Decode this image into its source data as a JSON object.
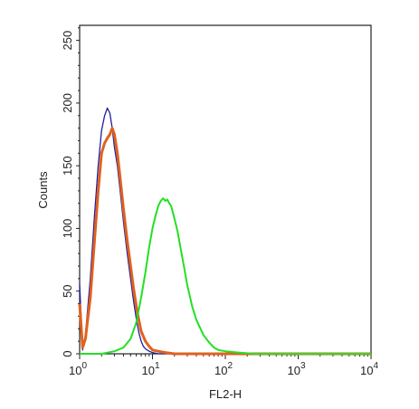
{
  "chart_data": {
    "type": "line",
    "title": "",
    "xlabel": "FL2-H",
    "ylabel": "Counts",
    "x_scale": "log",
    "xlim": [
      1,
      10000
    ],
    "ylim": [
      0,
      262
    ],
    "x_ticks": [
      {
        "value": 1,
        "base": "10",
        "exp": "0"
      },
      {
        "value": 10,
        "base": "10",
        "exp": "1"
      },
      {
        "value": 100,
        "base": "10",
        "exp": "2"
      },
      {
        "value": 1000,
        "base": "10",
        "exp": "3"
      },
      {
        "value": 10000,
        "base": "10",
        "exp": "4"
      }
    ],
    "y_ticks": [
      0,
      50,
      100,
      150,
      200,
      250
    ],
    "grid": false,
    "legend": "none",
    "series": [
      {
        "color": "#1f1f9e",
        "x": [
          1.0,
          1.1,
          1.2,
          1.4,
          1.6,
          1.8,
          2.0,
          2.2,
          2.4,
          2.6,
          2.8,
          3.0,
          3.3,
          3.6,
          4.0,
          4.5,
          5.0,
          5.5,
          6.0,
          6.5,
          7.0,
          7.5,
          8.0,
          9.0,
          10.0,
          12.0,
          15.0,
          20.0,
          30.0,
          10000
        ],
        "y": [
          55,
          3,
          15,
          60,
          110,
          150,
          178,
          190,
          196,
          192,
          180,
          165,
          150,
          130,
          105,
          80,
          60,
          42,
          28,
          17,
          10,
          6,
          4,
          2,
          1,
          0,
          0,
          0,
          0,
          0
        ]
      },
      {
        "color": "#e0611f",
        "x": [
          1.0,
          1.1,
          1.2,
          1.4,
          1.6,
          1.8,
          2.0,
          2.2,
          2.4,
          2.6,
          2.8,
          3.0,
          3.3,
          3.6,
          4.0,
          4.5,
          5.0,
          5.5,
          6.0,
          6.5,
          7.0,
          8.0,
          9.0,
          10.0,
          12.0,
          15.0,
          20.0,
          30.0,
          10000
        ],
        "y": [
          40,
          5,
          12,
          45,
          90,
          130,
          160,
          168,
          172,
          175,
          180,
          175,
          160,
          140,
          115,
          90,
          70,
          52,
          38,
          27,
          18,
          10,
          6,
          3,
          2,
          1,
          0,
          0,
          0
        ]
      },
      {
        "color": "#22e022",
        "x": [
          1.0,
          2.0,
          3.0,
          4.0,
          5.0,
          6.0,
          7.0,
          8.0,
          9.0,
          10.0,
          11.0,
          12.0,
          13.0,
          14.0,
          15.0,
          16.0,
          17.0,
          18.0,
          19.0,
          20.0,
          22.0,
          24.0,
          27.0,
          30.0,
          35.0,
          40.0,
          50.0,
          60.0,
          70.0,
          80.0,
          100.0,
          150.0,
          250.0,
          10000
        ],
        "y": [
          0,
          0,
          2,
          5,
          12,
          25,
          45,
          65,
          85,
          100,
          110,
          118,
          122,
          124,
          122,
          123,
          120,
          118,
          113,
          108,
          98,
          86,
          70,
          55,
          38,
          27,
          15,
          9,
          5,
          3,
          2,
          1,
          0,
          0
        ]
      }
    ]
  }
}
